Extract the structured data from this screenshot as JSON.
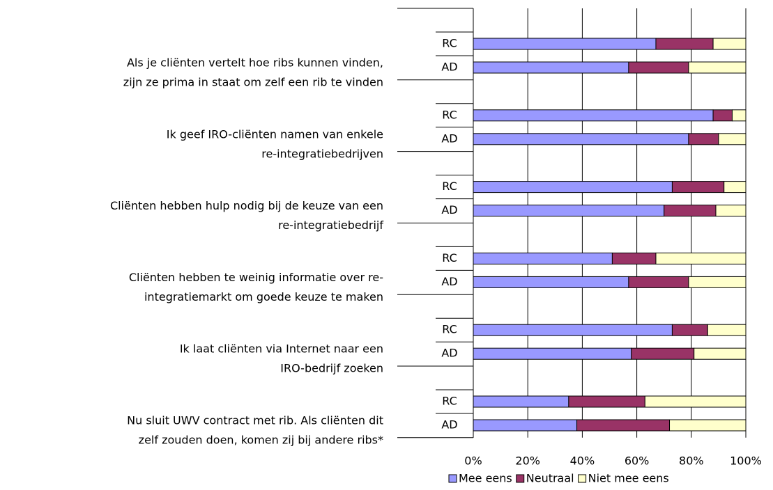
{
  "chart_data": {
    "type": "bar",
    "orientation": "horizontal",
    "stacked": true,
    "categories": [
      [
        "Als je cliënten vertelt hoe ribs kunnen vinden,",
        "zijn ze prima in staat om zelf een rib te vinden"
      ],
      [
        "Ik geef IRO-cliënten namen van enkele",
        "re-integratiebedrijven"
      ],
      [
        "Cliënten hebben hulp nodig bij de keuze van een",
        "re-integratiebedrijf"
      ],
      [
        "Cliënten hebben te weinig informatie over re-",
        "integratiemarkt om goede keuze te maken"
      ],
      [
        "Ik laat cliënten via Internet naar een",
        "IRO-bedrijf zoeken"
      ],
      [
        "Nu sluit UWV contract met rib. Als cliënten dit",
        "zelf zouden doen, komen zij bij andere ribs*"
      ]
    ],
    "subcategories": [
      "RC",
      "AD"
    ],
    "series": [
      {
        "name": "Mee eens",
        "color": "#9999ff",
        "values": [
          [
            67,
            57
          ],
          [
            88,
            79
          ],
          [
            73,
            70
          ],
          [
            51,
            57
          ],
          [
            73,
            58
          ],
          [
            35,
            38
          ]
        ]
      },
      {
        "name": "Neutraal",
        "color": "#993366",
        "values": [
          [
            21,
            22
          ],
          [
            7,
            11
          ],
          [
            19,
            19
          ],
          [
            16,
            22
          ],
          [
            13,
            23
          ],
          [
            28,
            34
          ]
        ]
      },
      {
        "name": "Niet mee eens",
        "color": "#ffffcc",
        "values": [
          [
            12,
            21
          ],
          [
            5,
            10
          ],
          [
            8,
            11
          ],
          [
            33,
            21
          ],
          [
            14,
            19
          ],
          [
            37,
            28
          ]
        ]
      }
    ],
    "xlim": [
      0,
      100
    ],
    "xticks": [
      {
        "value": 0,
        "label": "0%"
      },
      {
        "value": 20,
        "label": "20%"
      },
      {
        "value": 40,
        "label": "40%"
      },
      {
        "value": 60,
        "label": "60%"
      },
      {
        "value": 80,
        "label": "80%"
      },
      {
        "value": 100,
        "label": "100%"
      }
    ],
    "grid": true,
    "legend": "bottom"
  }
}
